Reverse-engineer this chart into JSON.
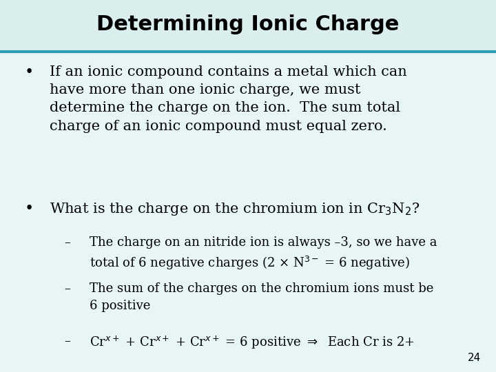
{
  "title": "Determining Ionic Charge",
  "title_bg_color": "#daeeed",
  "title_line_color": "#2a9db5",
  "bg_color": "#e8f5f5",
  "text_color": "#000000",
  "page_number": "24",
  "bullet1": "If an ionic compound contains a metal which can\nhave more than one ionic charge, we must\ndetermine the charge on the ion.  The sum total\ncharge of an ionic compound must equal zero.",
  "bullet2": "What is the charge on the chromium ion in Cr$_3$N$_2$?",
  "sub1": "The charge on an nitride ion is always –3, so we have a\ntotal of 6 negative charges (2 × N$^{3-}$ = 6 negative)",
  "sub2": "The sum of the charges on the chromium ions must be\n6 positive",
  "sub3": "Cr$^{x+}$ + Cr$^{x+}$ + Cr$^{x+}$ = 6 positive $\\Rightarrow$  Each Cr is 2+",
  "title_fontsize": 22,
  "body_fontsize": 15,
  "sub_fontsize": 13,
  "page_fontsize": 11
}
